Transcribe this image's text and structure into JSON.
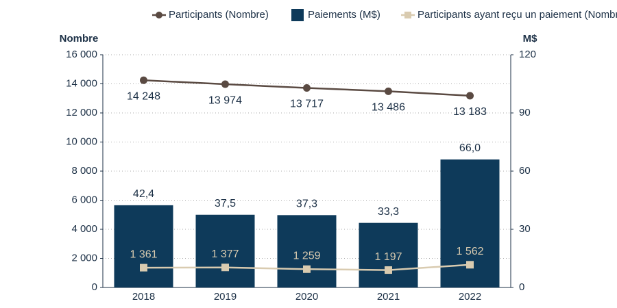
{
  "chart_data": {
    "type": "combo",
    "categories": [
      "2018",
      "2019",
      "2020",
      "2021",
      "2022"
    ],
    "series": [
      {
        "name": "Participants (Nombre)",
        "type": "line",
        "color": "#5a4a42",
        "axis": "y",
        "values": [
          14248,
          13974,
          13717,
          13486,
          13183
        ],
        "value_labels": [
          "14 248",
          "13 974",
          "13 717",
          "13 486",
          "13 183"
        ]
      },
      {
        "name": "Paiements (M$)",
        "type": "bar",
        "color": "#0e3a5a",
        "axis": "y2",
        "values": [
          42.4,
          37.5,
          37.3,
          33.3,
          66.0
        ],
        "value_labels": [
          "42,4",
          "37,5",
          "37,3",
          "33,3",
          "66,0"
        ]
      },
      {
        "name": "Participants ayant reçu un paiement (Nombre)",
        "type": "line",
        "color": "#d9cbb0",
        "axis": "y",
        "values": [
          1361,
          1377,
          1259,
          1197,
          1562
        ],
        "value_labels": [
          "1 361",
          "1 377",
          "1 259",
          "1 197",
          "1 562"
        ]
      }
    ],
    "ylabel": "Nombre",
    "y2label": "M$",
    "ylim": [
      0,
      16000
    ],
    "yticks": [
      0,
      {
        "value": 2000,
        "label": "2 000"
      },
      {
        "value": 4000,
        "label": "4 000"
      },
      {
        "value": 6000,
        "label": "6 000"
      },
      {
        "value": 8000,
        "label": "8 000"
      },
      {
        "value": 10000,
        "label": "10 000"
      },
      {
        "value": 12000,
        "label": "12 000"
      },
      {
        "value": 14000,
        "label": "14 000"
      },
      {
        "value": 16000,
        "label": "16 000"
      }
    ],
    "y2lim": [
      0,
      120
    ],
    "y2ticks": [
      0,
      30,
      60,
      90,
      120
    ],
    "grid": true
  }
}
